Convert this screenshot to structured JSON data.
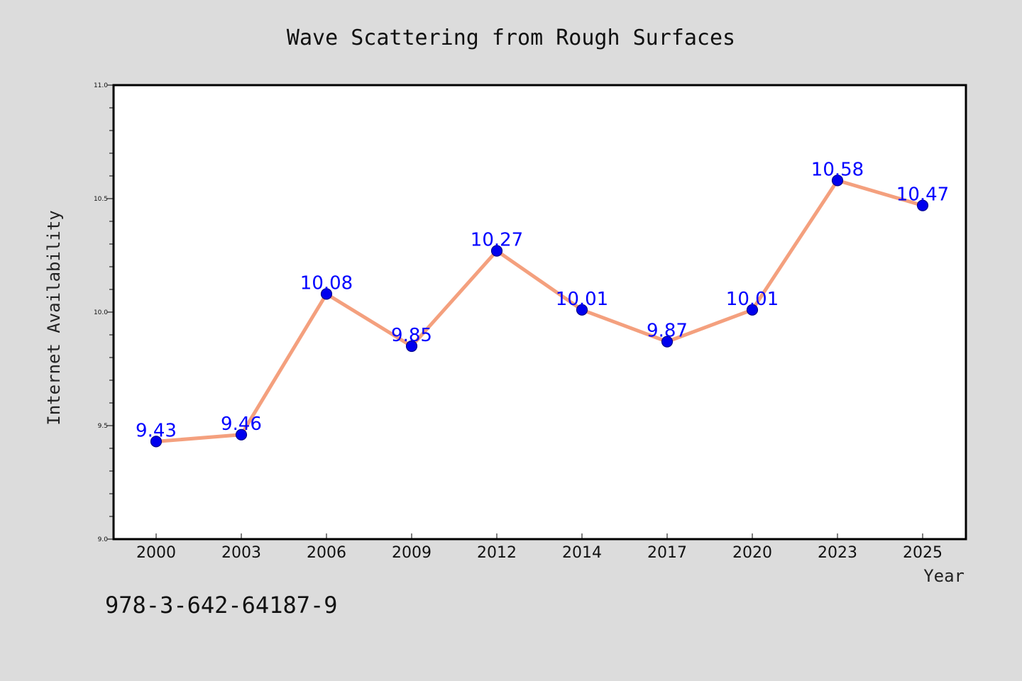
{
  "chart_data": {
    "type": "line",
    "title": "Wave Scattering from Rough Surfaces",
    "xlabel": "Year",
    "ylabel": "Internet Availability",
    "categories": [
      "2000",
      "2003",
      "2006",
      "2009",
      "2012",
      "2014",
      "2017",
      "2020",
      "2023",
      "2025"
    ],
    "series": [
      {
        "values": [
          9.43,
          9.46,
          10.08,
          9.85,
          10.27,
          10.01,
          9.87,
          10.01,
          10.58,
          10.47
        ]
      }
    ],
    "data_labels": [
      "9.43",
      "9.46",
      "10.08",
      "9.85",
      "10.27",
      "10.01",
      "9.87",
      "10.01",
      "10.58",
      "10.47"
    ],
    "ylim": [
      9.0,
      11.0
    ],
    "yticks": [
      "9.0",
      "9.5",
      "10.0",
      "10.5",
      "11.0"
    ],
    "grid": false,
    "colors": {
      "line": "#f4a07e",
      "marker": "#0000ee",
      "marker_edge": "#00008b",
      "data_label": "#0000ff",
      "plot_background": "#ffffff",
      "figure_background": "#dcdcdc"
    }
  },
  "footnote": "978-3-642-64187-9"
}
